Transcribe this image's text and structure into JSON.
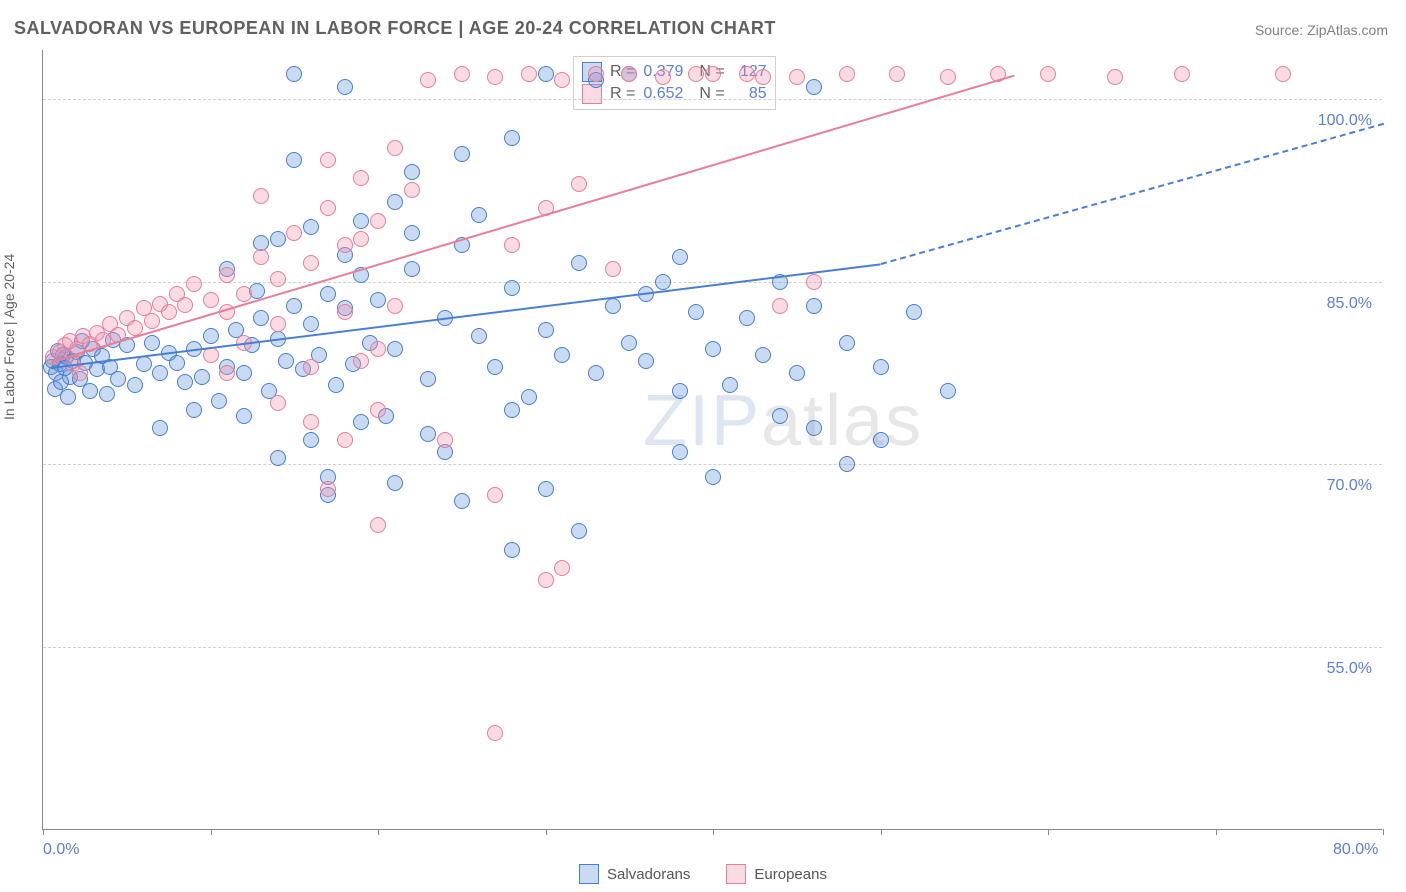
{
  "title": "SALVADORAN VS EUROPEAN IN LABOR FORCE | AGE 20-24 CORRELATION CHART",
  "source_label": "Source: ",
  "source_name": "ZipAtlas.com",
  "ylabel": "In Labor Force | Age 20-24",
  "watermark": {
    "zip": "ZIP",
    "atlas": "atlas"
  },
  "chart": {
    "type": "scatter",
    "background_color": "#ffffff",
    "grid_color": "#d0d0d0",
    "axis_color": "#888888",
    "tick_label_color": "#5a7fd6",
    "ylabel_fontsize": 14,
    "title_fontsize": 18,
    "tick_fontsize": 16,
    "xlim": [
      0,
      80
    ],
    "ylim": [
      40,
      104
    ],
    "xticks": [
      0,
      10,
      20,
      30,
      40,
      50,
      60,
      70,
      80
    ],
    "xtick_labels_shown": {
      "0": "0.0%",
      "80": "80.0%"
    },
    "yticks": [
      55,
      70,
      85,
      100
    ],
    "ytick_labels": [
      "55.0%",
      "70.0%",
      "85.0%",
      "100.0%"
    ],
    "marker": {
      "radius": 8,
      "border_width": 1.5,
      "fill_opacity": 0.35
    },
    "series": [
      {
        "name": "Salvadorans",
        "color_stroke": "#4a7fd0",
        "color_fill": "rgba(100,150,220,0.35)",
        "R": 0.379,
        "N": 127,
        "trend": {
          "solid": {
            "x1": 0.5,
            "y1": 78,
            "x2": 50,
            "y2": 86.5
          },
          "dashed": {
            "x1": 50,
            "y1": 86.5,
            "x2": 80,
            "y2": 98
          },
          "width": 2.5
        },
        "points": [
          [
            0.5,
            78
          ],
          [
            0.6,
            78.5
          ],
          [
            0.8,
            77.5
          ],
          [
            1,
            78.2
          ],
          [
            1.2,
            79
          ],
          [
            1.4,
            78.8
          ],
          [
            1.6,
            77.2
          ],
          [
            0.7,
            76.2
          ],
          [
            1.1,
            76.8
          ],
          [
            1.3,
            77.9
          ],
          [
            1.8,
            78.5
          ],
          [
            2,
            79.2
          ],
          [
            2.2,
            77
          ],
          [
            2.5,
            78.3
          ],
          [
            2.8,
            76
          ],
          [
            3,
            79.5
          ],
          [
            3.2,
            77.8
          ],
          [
            3.5,
            78.9
          ],
          [
            1.5,
            75.5
          ],
          [
            2.3,
            80.1
          ],
          [
            0.9,
            79.3
          ],
          [
            4,
            78
          ],
          [
            4.5,
            77
          ],
          [
            5,
            79.8
          ],
          [
            5.5,
            76.5
          ],
          [
            6,
            78.2
          ],
          [
            6.5,
            80
          ],
          [
            7,
            77.5
          ],
          [
            7.5,
            79.1
          ],
          [
            8,
            78.3
          ],
          [
            8.5,
            76.8
          ],
          [
            9,
            79.5
          ],
          [
            9.5,
            77.2
          ],
          [
            10,
            80.5
          ],
          [
            3.8,
            75.8
          ],
          [
            4.2,
            80.2
          ],
          [
            11,
            78
          ],
          [
            11.5,
            81
          ],
          [
            12,
            77.5
          ],
          [
            12.5,
            79.8
          ],
          [
            13,
            82
          ],
          [
            13.5,
            76
          ],
          [
            14,
            80.3
          ],
          [
            14.5,
            78.5
          ],
          [
            15,
            83
          ],
          [
            15.5,
            77.8
          ],
          [
            16,
            81.5
          ],
          [
            16.5,
            79
          ],
          [
            17,
            84
          ],
          [
            17.5,
            76.5
          ],
          [
            18,
            82.8
          ],
          [
            18.5,
            78.2
          ],
          [
            19,
            85.5
          ],
          [
            19.5,
            80
          ],
          [
            20,
            83.5
          ],
          [
            10.5,
            75.2
          ],
          [
            12.8,
            84.2
          ],
          [
            21,
            79.5
          ],
          [
            22,
            86
          ],
          [
            23,
            77
          ],
          [
            24,
            82
          ],
          [
            25,
            88
          ],
          [
            26,
            80.5
          ],
          [
            27,
            78
          ],
          [
            28,
            84.5
          ],
          [
            29,
            75.5
          ],
          [
            30,
            81
          ],
          [
            31,
            79
          ],
          [
            32,
            86.5
          ],
          [
            33,
            77.5
          ],
          [
            34,
            83
          ],
          [
            35,
            80
          ],
          [
            36,
            78.5
          ],
          [
            37,
            85
          ],
          [
            38,
            76
          ],
          [
            39,
            82.5
          ],
          [
            40,
            79.5
          ],
          [
            20.5,
            74
          ],
          [
            14,
            88.5
          ],
          [
            16,
            72
          ],
          [
            18,
            87.2
          ],
          [
            19,
            73.5
          ],
          [
            22,
            89
          ],
          [
            24,
            71
          ],
          [
            26,
            90.5
          ],
          [
            28,
            74.5
          ],
          [
            30,
            68
          ],
          [
            15,
            102
          ],
          [
            18,
            101
          ],
          [
            21,
            68.5
          ],
          [
            23,
            72.5
          ],
          [
            25,
            67
          ],
          [
            12,
            74
          ],
          [
            14,
            70.5
          ],
          [
            17,
            69
          ],
          [
            19,
            90
          ],
          [
            21,
            91.5
          ],
          [
            11,
            86
          ],
          [
            13,
            88.2
          ],
          [
            16,
            89.5
          ],
          [
            7,
            73
          ],
          [
            9,
            74.5
          ],
          [
            30,
            102
          ],
          [
            33,
            101.5
          ],
          [
            36,
            84
          ],
          [
            38,
            87
          ],
          [
            41,
            76.5
          ],
          [
            42,
            82
          ],
          [
            43,
            79
          ],
          [
            44,
            85
          ],
          [
            45,
            77.5
          ],
          [
            46,
            83
          ],
          [
            48,
            80
          ],
          [
            50,
            78
          ],
          [
            52,
            82.5
          ],
          [
            54,
            76
          ],
          [
            44,
            74
          ],
          [
            46,
            73
          ],
          [
            48,
            70
          ],
          [
            50,
            72
          ],
          [
            40,
            69
          ],
          [
            28,
            63
          ],
          [
            32,
            64.5
          ],
          [
            35,
            102
          ],
          [
            38,
            71
          ],
          [
            17,
            67.5
          ],
          [
            46,
            101
          ],
          [
            22,
            94
          ],
          [
            25,
            95.5
          ],
          [
            28,
            96.8
          ],
          [
            15,
            95
          ]
        ]
      },
      {
        "name": "Europeans",
        "color_stroke": "#e57f9a",
        "color_fill": "rgba(240,150,175,0.35)",
        "R": 0.652,
        "N": 85,
        "trend": {
          "solid": {
            "x1": 0.5,
            "y1": 78.5,
            "x2": 58,
            "y2": 102
          },
          "width": 2.5
        },
        "points": [
          [
            0.6,
            78.8
          ],
          [
            1,
            79.2
          ],
          [
            1.3,
            79.8
          ],
          [
            1.6,
            80.1
          ],
          [
            2,
            79.5
          ],
          [
            2.4,
            80.5
          ],
          [
            2.8,
            79.9
          ],
          [
            3.2,
            80.8
          ],
          [
            3.6,
            80.2
          ],
          [
            4,
            81.5
          ],
          [
            4.5,
            80.6
          ],
          [
            5,
            82
          ],
          [
            5.5,
            81.2
          ],
          [
            6,
            82.8
          ],
          [
            6.5,
            81.8
          ],
          [
            7,
            83.2
          ],
          [
            7.5,
            82.5
          ],
          [
            8,
            84
          ],
          [
            8.5,
            83.1
          ],
          [
            9,
            84.8
          ],
          [
            1.8,
            78.2
          ],
          [
            10,
            83.5
          ],
          [
            11,
            85.5
          ],
          [
            12,
            84
          ],
          [
            13,
            87
          ],
          [
            14,
            85.2
          ],
          [
            15,
            89
          ],
          [
            16,
            86.5
          ],
          [
            17,
            91
          ],
          [
            18,
            88
          ],
          [
            19,
            93.5
          ],
          [
            20,
            90
          ],
          [
            21,
            96
          ],
          [
            22,
            92.5
          ],
          [
            2.2,
            77.5
          ],
          [
            12,
            80
          ],
          [
            14,
            81.5
          ],
          [
            16,
            78
          ],
          [
            18,
            82.5
          ],
          [
            20,
            79.5
          ],
          [
            10,
            79
          ],
          [
            11,
            77.5
          ],
          [
            17,
            95
          ],
          [
            19,
            88.5
          ],
          [
            21,
            83
          ],
          [
            23,
            101.5
          ],
          [
            25,
            102
          ],
          [
            27,
            101.8
          ],
          [
            29,
            102
          ],
          [
            31,
            101.5
          ],
          [
            33,
            102
          ],
          [
            35,
            102
          ],
          [
            37,
            101.8
          ],
          [
            39,
            102
          ],
          [
            42,
            102
          ],
          [
            45,
            101.8
          ],
          [
            48,
            102
          ],
          [
            51,
            102
          ],
          [
            54,
            101.8
          ],
          [
            57,
            102
          ],
          [
            60,
            102
          ],
          [
            64,
            101.8
          ],
          [
            68,
            102
          ],
          [
            74,
            102
          ],
          [
            14,
            75
          ],
          [
            16,
            73.5
          ],
          [
            18,
            72
          ],
          [
            20,
            74.5
          ],
          [
            24,
            72
          ],
          [
            28,
            88
          ],
          [
            30,
            91
          ],
          [
            32,
            93
          ],
          [
            34,
            86
          ],
          [
            17,
            68
          ],
          [
            20,
            65
          ],
          [
            27,
            67.5
          ],
          [
            30,
            60.5
          ],
          [
            31,
            61.5
          ],
          [
            27,
            48
          ],
          [
            44,
            83
          ],
          [
            46,
            85
          ],
          [
            40,
            102
          ],
          [
            43,
            101.8
          ],
          [
            19,
            78.5
          ],
          [
            13,
            92
          ],
          [
            11,
            82.5
          ]
        ]
      }
    ]
  },
  "stats_box": {
    "rows": [
      {
        "swatch_fill": "rgba(100,150,220,0.35)",
        "swatch_stroke": "#4a7fd0",
        "r_label": "R =",
        "r": "0.379",
        "n_label": "N =",
        "n": "127"
      },
      {
        "swatch_fill": "rgba(240,150,175,0.35)",
        "swatch_stroke": "#e57f9a",
        "r_label": "R =",
        "r": "0.652",
        "n_label": "N =",
        "n": "  85"
      }
    ]
  },
  "legend": {
    "items": [
      {
        "label": "Salvadorans",
        "fill": "rgba(100,150,220,0.35)",
        "stroke": "#4a7fd0"
      },
      {
        "label": "Europeans",
        "fill": "rgba(240,150,175,0.35)",
        "stroke": "#e57f9a"
      }
    ]
  }
}
